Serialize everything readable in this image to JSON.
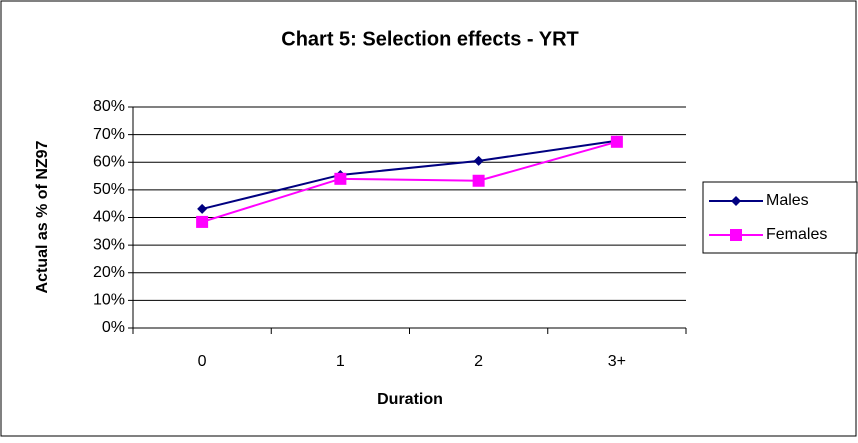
{
  "chart_data": {
    "type": "line",
    "title": "Chart 5: Selection effects - YRT",
    "x_label": "Duration",
    "y_label": "Actual as % of NZ97",
    "categories": [
      "0",
      "1",
      "2",
      "3+"
    ],
    "series": [
      {
        "name": "Males",
        "color": "#000080",
        "marker": "diamond",
        "values": [
          43.1,
          55.4,
          60.5,
          67.8
        ]
      },
      {
        "name": "Females",
        "color": "#ff00ff",
        "marker": "square",
        "values": [
          38.4,
          54,
          53.3,
          67.4
        ]
      }
    ],
    "ylim": [
      0,
      80
    ],
    "yticks": [
      {
        "value": 0,
        "label": "0%"
      },
      {
        "value": 10,
        "label": "10%"
      },
      {
        "value": 20,
        "label": "20%"
      },
      {
        "value": 30,
        "label": "30%"
      },
      {
        "value": 40,
        "label": "40%"
      },
      {
        "value": 50,
        "label": "50%"
      },
      {
        "value": 60,
        "label": "60%"
      },
      {
        "value": 70,
        "label": "70%"
      },
      {
        "value": 80,
        "label": "80%"
      }
    ],
    "grid": true,
    "legend": "right"
  }
}
